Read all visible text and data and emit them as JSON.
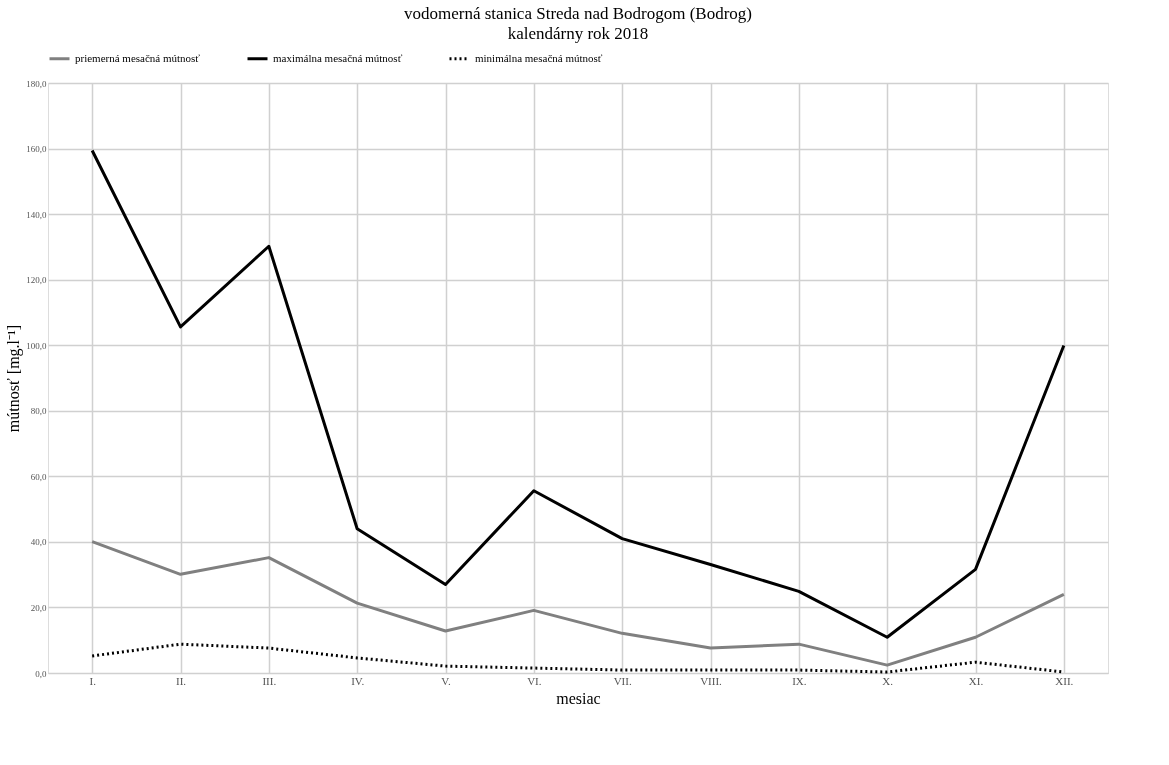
{
  "chart_data": {
    "type": "line",
    "title": "vodomerná stanica Streda nad Bodrogom (Bodrog)",
    "subtitle": "kalendárny rok 2018",
    "xlabel": "mesiac",
    "ylabel": "mútnosť [mg.l⁻¹]",
    "categories": [
      "I.",
      "II.",
      "III.",
      "IV.",
      "V.",
      "VI.",
      "VII.",
      "VIII.",
      "IX.",
      "X.",
      "XI.",
      "XII."
    ],
    "series": [
      {
        "name": "priemerná mesačná mútnosť",
        "color": "#808080",
        "line_style": "solid",
        "values": [
          40.1,
          30.1,
          35.2,
          21.3,
          12.8,
          19.1,
          12.1,
          7.6,
          8.8,
          2.4,
          10.9,
          24.0
        ]
      },
      {
        "name": "maximálna mesačná mútnosť",
        "color": "#000000",
        "line_style": "solid",
        "values": [
          159.4,
          105.6,
          130.2,
          44.0,
          27.0,
          55.6,
          41.0,
          33.1,
          24.9,
          10.9,
          31.6,
          99.9
        ]
      },
      {
        "name": "minimálna mesačná mútnosť",
        "color": "#000000",
        "line_style": "dotted",
        "values": [
          5.2,
          8.8,
          7.6,
          4.6,
          2.1,
          1.5,
          0.9,
          0.9,
          0.9,
          0.3,
          3.3,
          0.3
        ]
      }
    ],
    "ylim": [
      0,
      180
    ],
    "yticks": [
      {
        "value": 0,
        "label": "0,0"
      },
      {
        "value": 20,
        "label": "20,0"
      },
      {
        "value": 40,
        "label": "40,0"
      },
      {
        "value": 60,
        "label": "60,0"
      },
      {
        "value": 80,
        "label": "80,0"
      },
      {
        "value": 100,
        "label": "100,0"
      },
      {
        "value": 120,
        "label": "120,0"
      },
      {
        "value": 140,
        "label": "140,0"
      },
      {
        "value": 160,
        "label": "160,0"
      },
      {
        "value": 180,
        "label": "180,0"
      }
    ],
    "grid": true,
    "legend": "top",
    "marker": "none"
  }
}
